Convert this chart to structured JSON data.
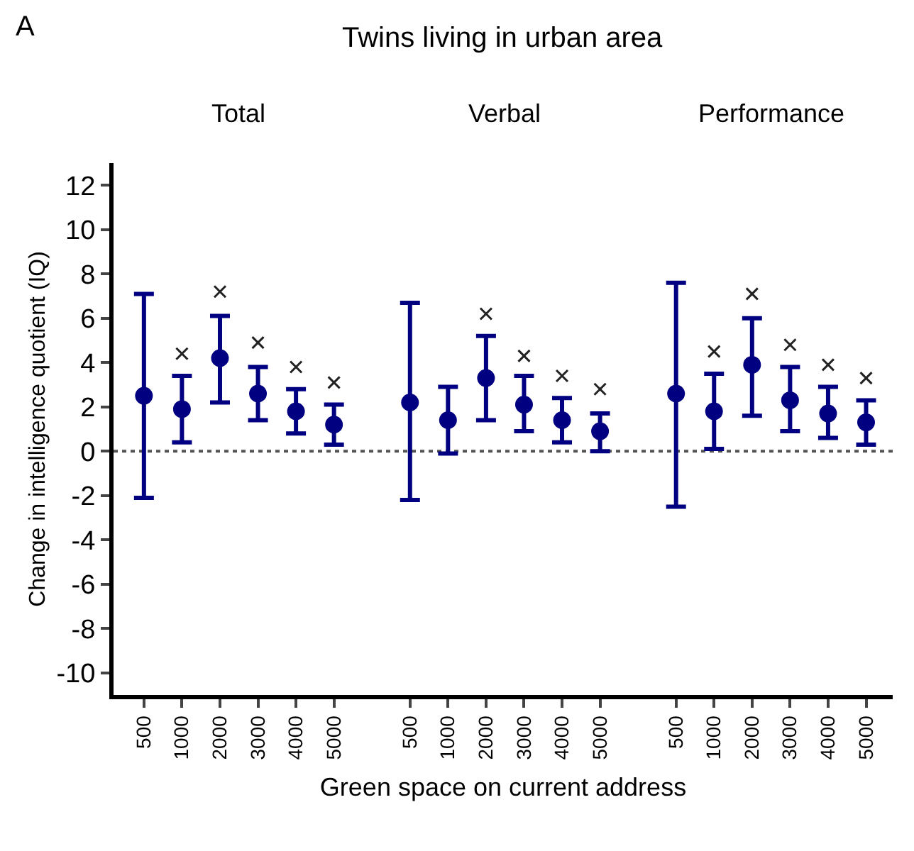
{
  "chart_data": {
    "type": "scatter",
    "title": "Twins living in urban area",
    "xlabel": "Green space on current address",
    "ylabel": "Change in intelligence quotient (IQ)",
    "annotations": [
      "A",
      "Total",
      "Verbal",
      "Performance"
    ],
    "categories": [
      "500",
      "1000",
      "2000",
      "3000",
      "4000",
      "5000",
      null,
      "500",
      "1000",
      "2000",
      "3000",
      "4000",
      "5000",
      null,
      "500",
      "1000",
      "2000",
      "3000",
      "4000",
      "5000"
    ],
    "marker": "circle",
    "ylim": [
      -11,
      13
    ],
    "yticks": [
      -10,
      -8,
      -6,
      -4,
      -2,
      0,
      2,
      4,
      6,
      8,
      10,
      12
    ],
    "grid": false,
    "series": [
      {
        "color": "#000080",
        "values": [
          2.5,
          1.9,
          4.2,
          2.6,
          1.8,
          1.2,
          null,
          2.2,
          1.4,
          3.3,
          2.1,
          1.4,
          0.9,
          null,
          2.6,
          1.8,
          3.9,
          2.3,
          1.7,
          1.3
        ],
        "errors": [
          [
            -2.1,
            7.1
          ],
          [
            0.4,
            3.4
          ],
          [
            2.2,
            6.1
          ],
          [
            1.4,
            3.8
          ],
          [
            0.8,
            2.8
          ],
          [
            0.3,
            2.1
          ],
          null,
          [
            -2.2,
            6.7
          ],
          [
            -0.1,
            2.9
          ],
          [
            1.4,
            5.2
          ],
          [
            0.9,
            3.4
          ],
          [
            0.4,
            2.4
          ],
          [
            0.0,
            1.7
          ],
          null,
          [
            -2.5,
            7.6
          ],
          [
            0.1,
            3.5
          ],
          [
            1.6,
            6.0
          ],
          [
            0.9,
            3.8
          ],
          [
            0.6,
            2.9
          ],
          [
            0.3,
            2.3
          ]
        ]
      },
      {
        "color": "#222222",
        "marker": "cross",
        "values": [
          null,
          4.4,
          7.2,
          4.9,
          3.8,
          3.1,
          null,
          null,
          null,
          6.2,
          4.3,
          3.4,
          2.8,
          null,
          null,
          4.5,
          7.1,
          4.8,
          3.9,
          3.3
        ]
      }
    ],
    "ref_lines": [
      {
        "axis": "y",
        "value": 0,
        "color": "#555555",
        "line_style": "dotted"
      }
    ]
  }
}
